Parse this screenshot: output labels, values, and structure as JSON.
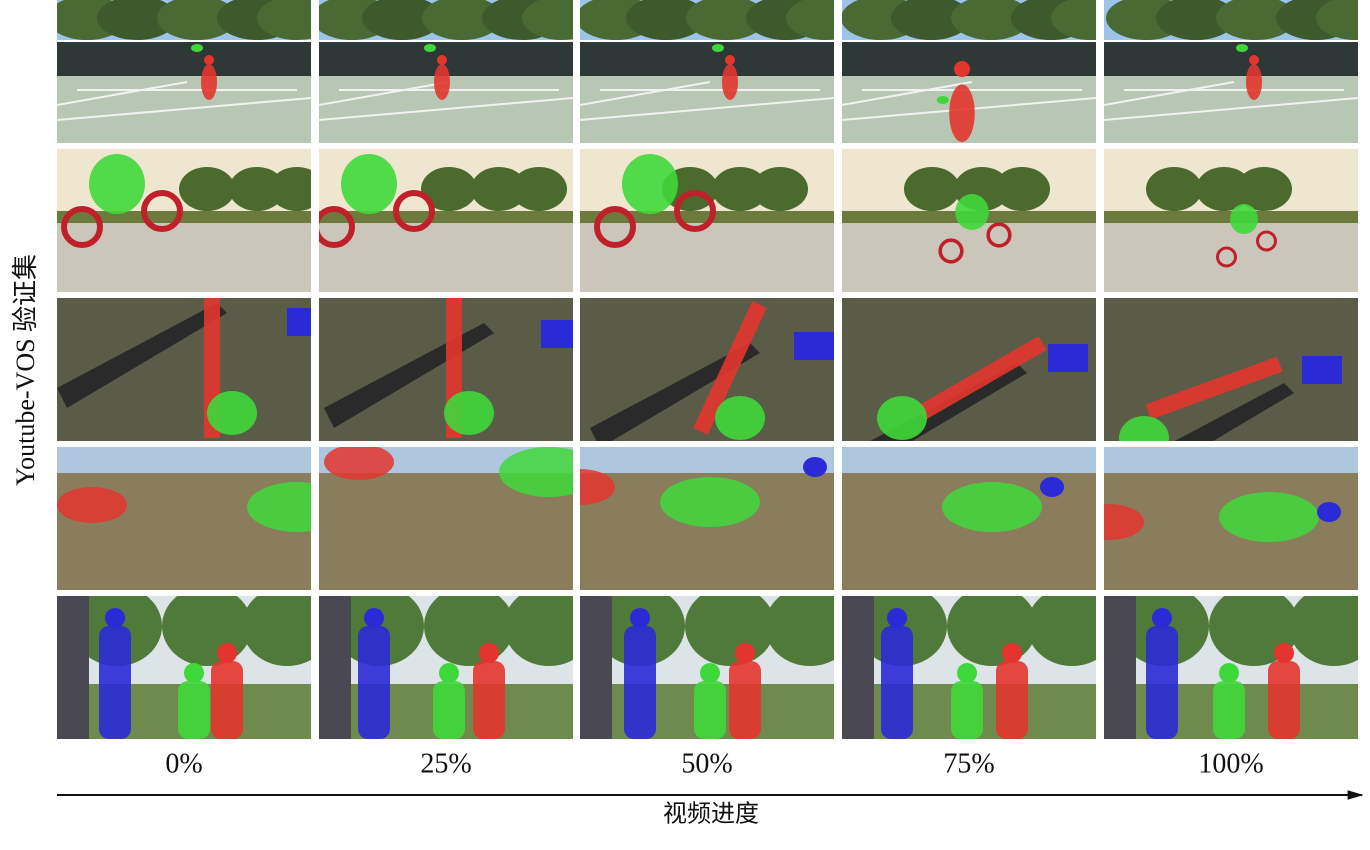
{
  "y_label": "Youtube-VOS 验证集",
  "columns": [
    "0%",
    "25%",
    "50%",
    "75%",
    "100%"
  ],
  "x_label": "视频进度"
}
